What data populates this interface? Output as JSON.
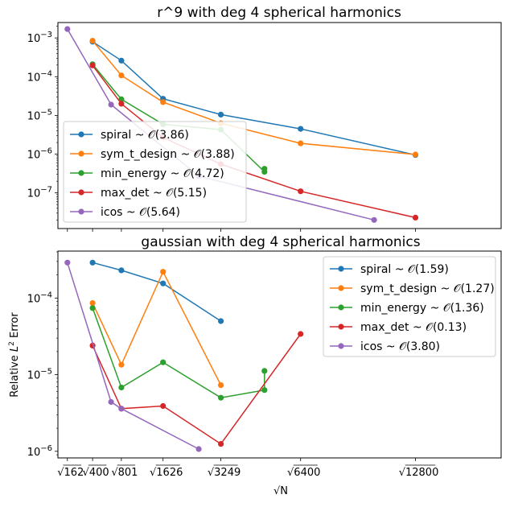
{
  "figure": {
    "xlabel": "√N",
    "shared_x_ticks": [
      {
        "v": 162,
        "label": "√162"
      },
      {
        "v": 400,
        "label": "√400"
      },
      {
        "v": 801,
        "label": "√801"
      },
      {
        "v": 1626,
        "label": "√1626"
      },
      {
        "v": 3249,
        "label": "√3249"
      },
      {
        "v": 6400,
        "label": "√6400"
      },
      {
        "v": 12800,
        "label": "√12800"
      }
    ]
  },
  "chart_data": [
    {
      "type": "line",
      "title": "r^9 with deg 4 spherical harmonics",
      "xscale": "sqrt",
      "yscale": "log",
      "xlim": [
        100,
        19000
      ],
      "ylim": [
        1.2e-08,
        0.0025
      ],
      "y_ticks": [
        {
          "v": 0.001,
          "base": "10",
          "exp": "−3"
        },
        {
          "v": 0.0001,
          "base": "10",
          "exp": "−4"
        },
        {
          "v": 1e-05,
          "base": "10",
          "exp": "−5"
        },
        {
          "v": 1e-06,
          "base": "10",
          "exp": "−6"
        },
        {
          "v": 1e-07,
          "base": "10",
          "exp": "−7"
        }
      ],
      "grid": false,
      "legend_position": "lower-left",
      "series": [
        {
          "name": "spiral ~ 𝒪(3.86)",
          "color": "#1f77b4",
          "x": [
            400,
            801,
            1626,
            3249,
            6400,
            12800
          ],
          "y": [
            0.0008,
            0.00026,
            2.7e-05,
            1.05e-05,
            4.5e-06,
            9.5e-07
          ]
        },
        {
          "name": "sym_t_design ~ 𝒪(3.88)",
          "color": "#ff7f0e",
          "x": [
            400,
            801,
            1626,
            3249,
            6400,
            12800
          ],
          "y": [
            0.00085,
            0.000108,
            2.2e-05,
            6.3e-06,
            1.9e-06,
            9.8e-07
          ]
        },
        {
          "name": "min_energy ~ 𝒪(4.72)",
          "color": "#2ca02c",
          "x": [
            400,
            801,
            1626,
            3249,
            4842,
            4842
          ],
          "y": [
            0.00021,
            2.6e-05,
            5.9e-06,
            4.3e-06,
            3.5e-07,
            4.2e-07
          ]
        },
        {
          "name": "max_det ~ 𝒪(5.15)",
          "color": "#d62728",
          "x": [
            400,
            801,
            1626,
            3249,
            6400,
            12800
          ],
          "y": [
            0.000195,
            2e-05,
            2.7e-06,
            5.5e-07,
            1.1e-07,
            2.3e-08
          ]
        },
        {
          "name": "icos ~ 𝒪(5.64)",
          "color": "#9467bd",
          "x": [
            162,
            642,
            2562,
            10242
          ],
          "y": [
            0.0017,
            1.9e-05,
            2.7e-07,
            2e-08
          ]
        }
      ]
    },
    {
      "type": "line",
      "title": "gaussian with deg 4 spherical harmonics",
      "ylabel_prefix": "Relative ",
      "ylabel_L": "L",
      "ylabel_sup": "2",
      "ylabel_suffix": " Error",
      "xscale": "sqrt",
      "yscale": "log",
      "xlim": [
        100,
        19000
      ],
      "ylim": [
        8.2e-07,
        0.00041
      ],
      "y_ticks": [
        {
          "v": 0.0001,
          "base": "10",
          "exp": "−4"
        },
        {
          "v": 1e-05,
          "base": "10",
          "exp": "−5"
        },
        {
          "v": 1e-06,
          "base": "10",
          "exp": "−6"
        }
      ],
      "grid": false,
      "legend_position": "upper-right",
      "series": [
        {
          "name": "spiral ~ 𝒪(1.59)",
          "color": "#1f77b4",
          "x": [
            400,
            801,
            1626,
            3249
          ],
          "y": [
            0.00029,
            0.00023,
            0.000155,
            5e-05
          ]
        },
        {
          "name": "sym_t_design ~ 𝒪(1.27)",
          "color": "#ff7f0e",
          "x": [
            400,
            801,
            1626,
            3249
          ],
          "y": [
            8.6e-05,
            1.35e-05,
            0.00022,
            7.3e-06
          ]
        },
        {
          "name": "min_energy ~ 𝒪(1.36)",
          "color": "#2ca02c",
          "x": [
            400,
            801,
            1626,
            3249,
            4842,
            4842
          ],
          "y": [
            7.4e-05,
            6.8e-06,
            1.45e-05,
            5e-06,
            6.3e-06,
            1.12e-05
          ]
        },
        {
          "name": "max_det ~ 𝒪(0.13)",
          "color": "#d62728",
          "x": [
            400,
            801,
            1626,
            3249,
            6400
          ],
          "y": [
            2.4e-05,
            3.6e-06,
            3.9e-06,
            1.25e-06,
            3.4e-05
          ]
        },
        {
          "name": "icos ~ 𝒪(3.80)",
          "color": "#9467bd",
          "x": [
            162,
            642,
            801,
            2562
          ],
          "y": [
            0.00029,
            4.4e-06,
            3.6e-06,
            1.07e-06
          ]
        }
      ]
    }
  ]
}
